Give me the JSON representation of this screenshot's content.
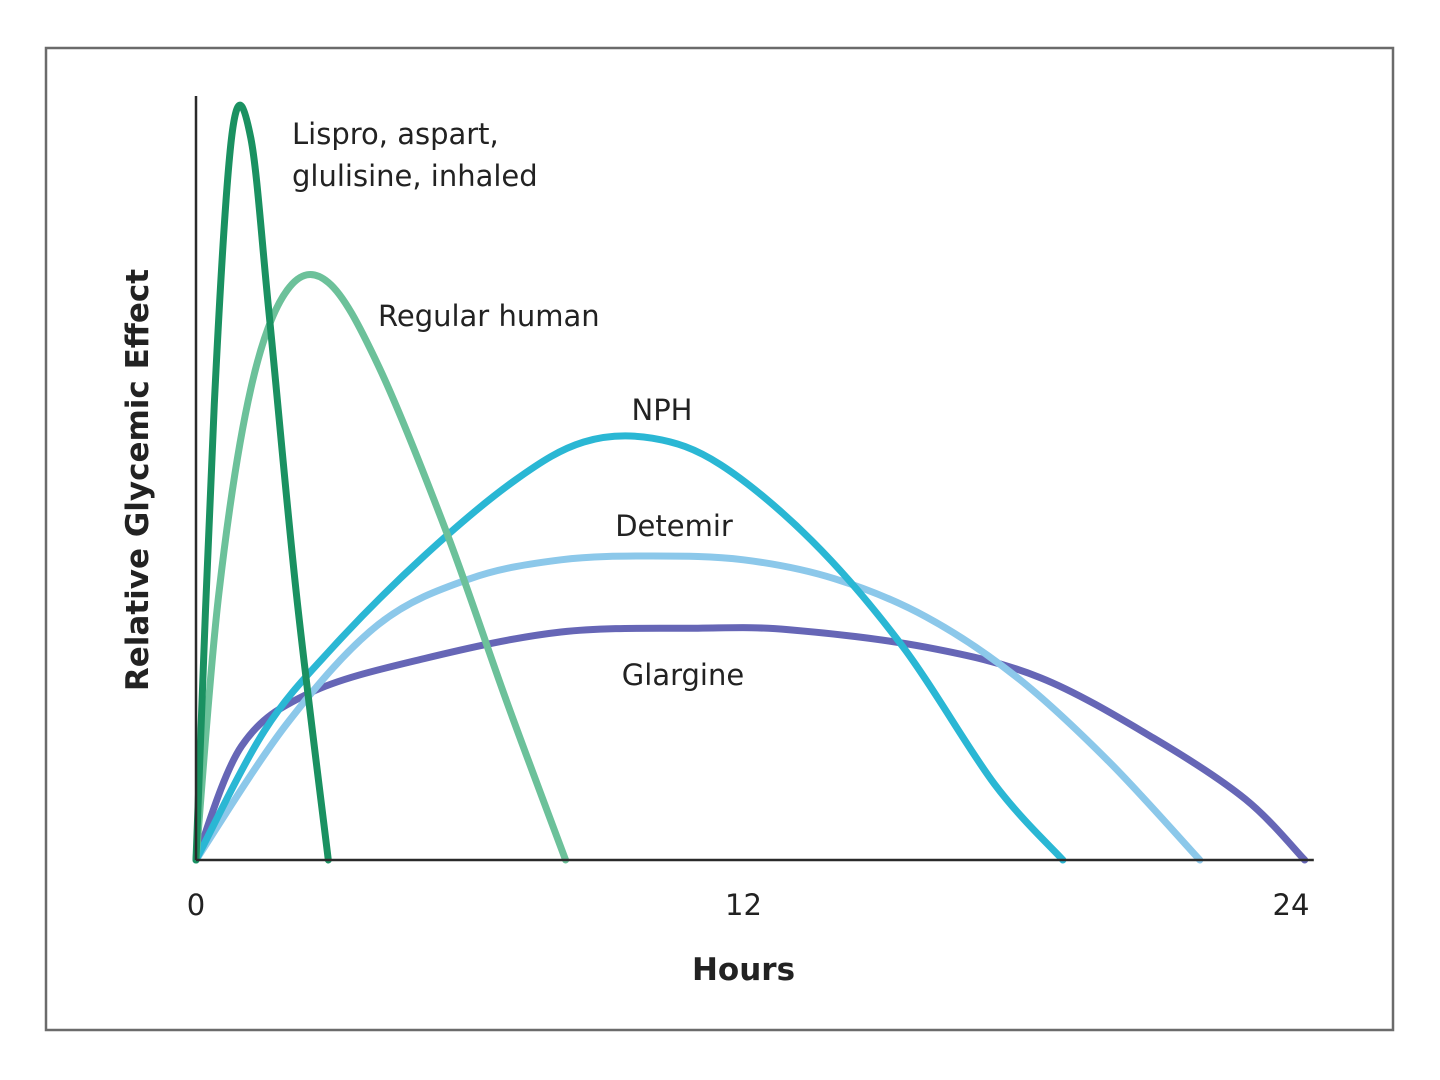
{
  "chart_data": {
    "type": "line",
    "xlabel": "Hours",
    "ylabel": "Relative Glycemic Effect",
    "xlim": [
      0,
      24.5
    ],
    "ylim": [
      0,
      100
    ],
    "x_ticks": [
      "0",
      "12",
      "24"
    ],
    "x_tick_values": [
      0,
      12,
      24
    ],
    "grid": false,
    "legend": "none (series labeled directly on curves)",
    "series": [
      {
        "name": "Lispro, aspart, glulisine, inhaled",
        "label_lines": [
          "Lispro, aspart,",
          "glulisine, inhaled"
        ],
        "color": "#1a9161",
        "points": [
          [
            0,
            0
          ],
          [
            0.4,
            60
          ],
          [
            0.8,
            96
          ],
          [
            1.2,
            95
          ],
          [
            1.6,
            72
          ],
          [
            2.2,
            35
          ],
          [
            2.9,
            0
          ]
        ]
      },
      {
        "name": "Regular human",
        "label_lines": [
          "Regular human"
        ],
        "color": "#6cc19a",
        "points": [
          [
            0,
            0
          ],
          [
            0.5,
            35
          ],
          [
            1.2,
            62
          ],
          [
            2,
            75
          ],
          [
            2.9,
            76
          ],
          [
            4,
            65
          ],
          [
            5.5,
            43
          ],
          [
            6.8,
            21
          ],
          [
            8.1,
            0
          ]
        ]
      },
      {
        "name": "NPH",
        "label_lines": [
          "NPH"
        ],
        "color": "#2ab7d4",
        "points": [
          [
            0,
            0
          ],
          [
            1.5,
            17
          ],
          [
            3,
            28
          ],
          [
            5,
            40
          ],
          [
            7,
            50
          ],
          [
            8.5,
            55
          ],
          [
            10,
            55.5
          ],
          [
            11.5,
            52
          ],
          [
            13.5,
            42
          ],
          [
            15.5,
            28
          ],
          [
            17.5,
            10
          ],
          [
            19,
            0
          ]
        ]
      },
      {
        "name": "Detemir",
        "label_lines": [
          "Detemir"
        ],
        "color": "#8cc8ea",
        "points": [
          [
            0,
            0
          ],
          [
            2,
            18
          ],
          [
            4,
            31
          ],
          [
            6,
            37
          ],
          [
            8,
            39.5
          ],
          [
            10,
            40
          ],
          [
            12,
            39.5
          ],
          [
            14,
            37
          ],
          [
            16,
            32
          ],
          [
            18,
            24
          ],
          [
            20,
            13
          ],
          [
            22,
            0
          ]
        ]
      },
      {
        "name": "Glargine",
        "label_lines": [
          "Glargine"
        ],
        "color": "#6666b6",
        "points": [
          [
            0,
            0
          ],
          [
            1,
            15
          ],
          [
            2.5,
            22
          ],
          [
            5,
            26.5
          ],
          [
            8,
            30
          ],
          [
            11,
            30.5
          ],
          [
            13,
            30.3
          ],
          [
            16,
            28
          ],
          [
            18.5,
            24
          ],
          [
            21,
            16
          ],
          [
            23,
            8
          ],
          [
            24.3,
            0
          ]
        ]
      }
    ]
  }
}
